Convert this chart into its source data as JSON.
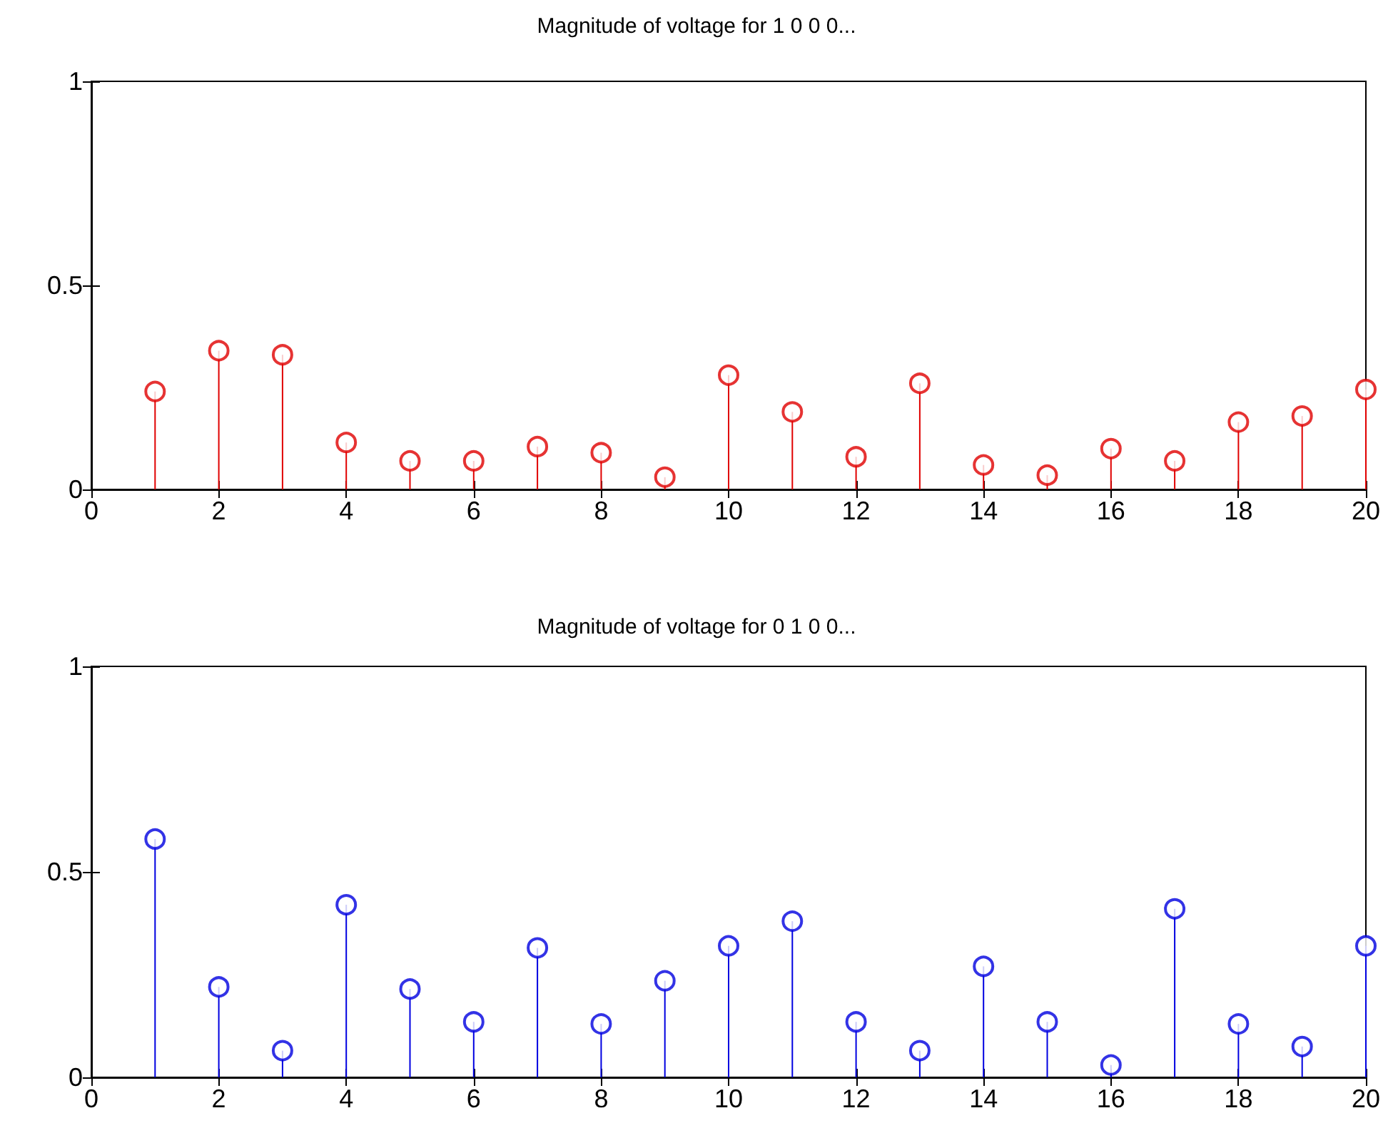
{
  "chart_data": [
    {
      "type": "lollipop",
      "title": "Magnitude of voltage for 1 0 0 0...",
      "x": [
        1,
        2,
        3,
        4,
        5,
        6,
        7,
        8,
        9,
        10,
        11,
        12,
        13,
        14,
        15,
        16,
        17,
        18,
        19,
        20
      ],
      "series": [
        {
          "color": "#e00000",
          "values": [
            0.24,
            0.34,
            0.33,
            0.115,
            0.07,
            0.07,
            0.105,
            0.09,
            0.03,
            0.28,
            0.19,
            0.08,
            0.26,
            0.06,
            0.035,
            0.1,
            0.07,
            0.165,
            0.18,
            0.245
          ]
        }
      ],
      "xlim": [
        0,
        20
      ],
      "xticks": [
        0,
        2,
        4,
        6,
        8,
        10,
        12,
        14,
        16,
        18,
        20
      ],
      "ylim": [
        0,
        1
      ],
      "yticks": [
        0,
        0.5,
        1
      ],
      "grid": false,
      "marker": "circle"
    },
    {
      "type": "lollipop",
      "title": "Magnitude of voltage for 0 1 0 0...",
      "x": [
        1,
        2,
        3,
        4,
        5,
        6,
        7,
        8,
        9,
        10,
        11,
        12,
        13,
        14,
        15,
        16,
        17,
        18,
        19,
        20
      ],
      "series": [
        {
          "color": "#0000e0",
          "values": [
            0.58,
            0.22,
            0.065,
            0.42,
            0.215,
            0.135,
            0.315,
            0.13,
            0.235,
            0.32,
            0.38,
            0.135,
            0.065,
            0.27,
            0.135,
            0.03,
            0.41,
            0.13,
            0.075,
            0.32
          ]
        }
      ],
      "xlim": [
        0,
        20
      ],
      "xticks": [
        0,
        2,
        4,
        6,
        8,
        10,
        12,
        14,
        16,
        18,
        20
      ],
      "ylim": [
        0,
        1
      ],
      "yticks": [
        0,
        0.5,
        1
      ],
      "grid": false,
      "marker": "circle"
    }
  ]
}
